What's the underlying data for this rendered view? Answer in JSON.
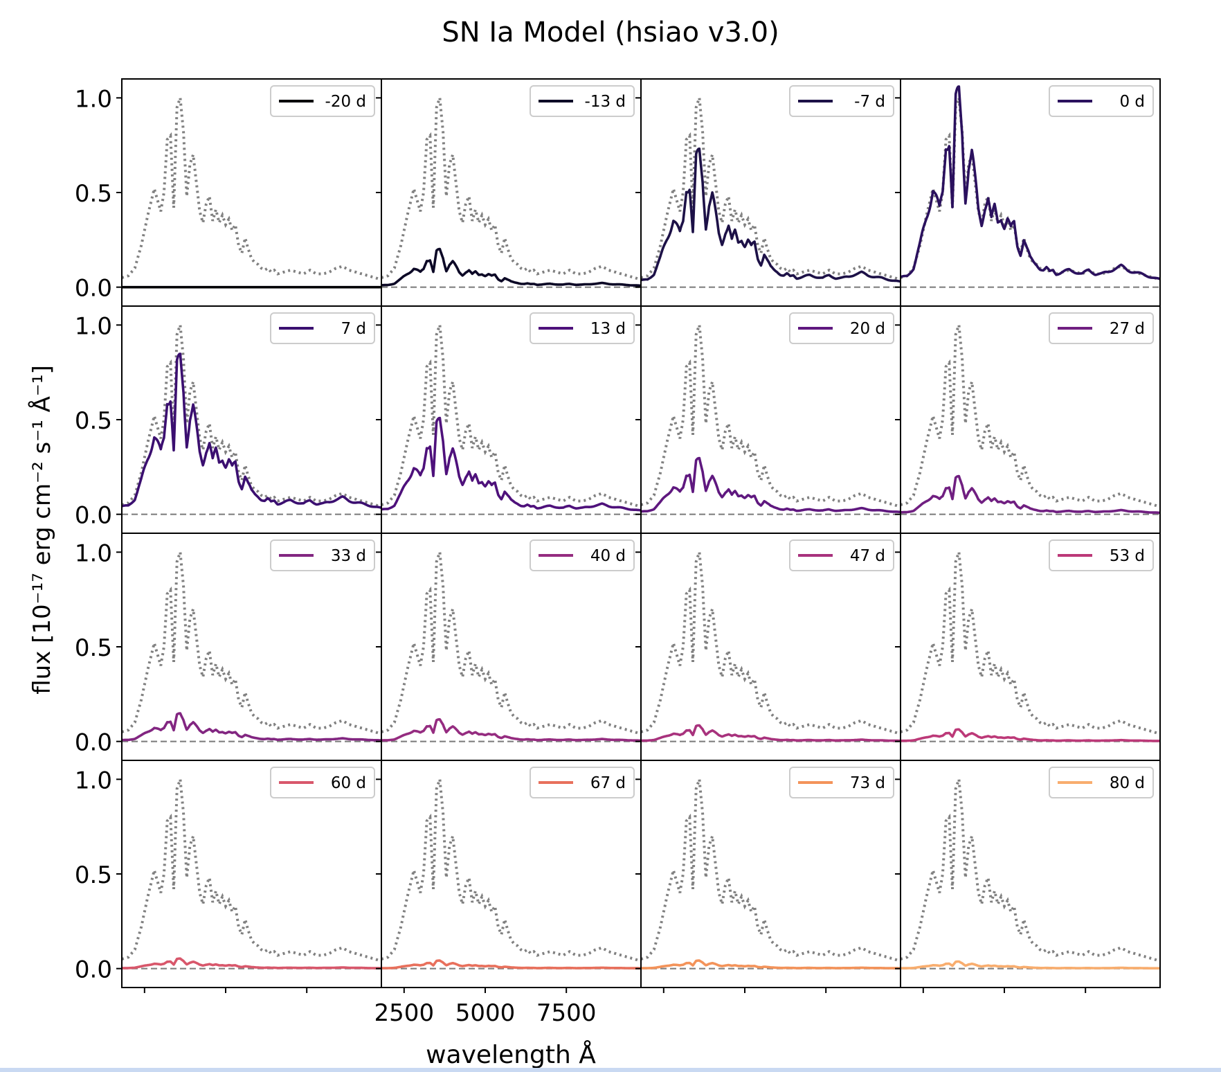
{
  "chart_data": {
    "type": "line",
    "title": "SN Ia Model (hsiao v3.0)",
    "xlabel": "wavelength Å",
    "ylabel": "flux [10⁻¹⁷ erg cm⁻² s⁻¹ Å⁻¹]",
    "grid": false,
    "layout": {
      "rows": 4,
      "cols": 4
    },
    "xlim": [
      1800,
      9800
    ],
    "ylim": [
      -0.1,
      1.1
    ],
    "xticks": [
      2500,
      5000,
      7500
    ],
    "xtick_labels": [
      "2500",
      "5000",
      "7500"
    ],
    "yticks": [
      0.0,
      0.5,
      1.0
    ],
    "ytick_labels": [
      "0.0",
      "0.5",
      "1.0"
    ],
    "baseline": 0.0,
    "legend_location": "upper right",
    "peak_spectrum": {
      "style": "dotted",
      "color": "#808080",
      "x": [
        1800,
        2000,
        2200,
        2400,
        2600,
        2800,
        3000,
        3100,
        3200,
        3300,
        3400,
        3500,
        3600,
        3700,
        3800,
        3900,
        4000,
        4100,
        4200,
        4300,
        4400,
        4500,
        4600,
        4700,
        4800,
        4900,
        5000,
        5100,
        5200,
        5300,
        5400,
        5500,
        5600,
        5700,
        5800,
        5900,
        6000,
        6100,
        6200,
        6300,
        6400,
        6500,
        6600,
        6800,
        7000,
        7200,
        7400,
        7600,
        7800,
        8000,
        8200,
        8400,
        8600,
        8800,
        9000,
        9200,
        9400,
        9600,
        9800
      ],
      "y": [
        0.05,
        0.06,
        0.1,
        0.22,
        0.38,
        0.52,
        0.4,
        0.5,
        0.78,
        0.8,
        0.42,
        0.95,
        1.0,
        0.82,
        0.48,
        0.65,
        0.7,
        0.55,
        0.4,
        0.34,
        0.44,
        0.48,
        0.35,
        0.41,
        0.34,
        0.38,
        0.33,
        0.36,
        0.3,
        0.33,
        0.22,
        0.18,
        0.26,
        0.2,
        0.15,
        0.13,
        0.12,
        0.1,
        0.09,
        0.1,
        0.08,
        0.09,
        0.07,
        0.08,
        0.09,
        0.08,
        0.07,
        0.09,
        0.07,
        0.07,
        0.08,
        0.1,
        0.11,
        0.09,
        0.08,
        0.07,
        0.06,
        0.05,
        0.04
      ]
    },
    "series": [
      {
        "name": "-20 d",
        "color": "#000004",
        "scale": 0.0
      },
      {
        "name": "-13 d",
        "color": "#0c0826",
        "scale": 0.19
      },
      {
        "name": "-7 d",
        "color": "#1d1147",
        "scale": 0.69
      },
      {
        "name": "0 d",
        "color": "#2b115e",
        "scale": 1.0
      },
      {
        "name": "7 d",
        "color": "#3b0f70",
        "scale": 0.8
      },
      {
        "name": "13 d",
        "color": "#4e117b",
        "scale": 0.48
      },
      {
        "name": "20 d",
        "color": "#5f187f",
        "scale": 0.28
      },
      {
        "name": "27 d",
        "color": "#701f81",
        "scale": 0.19
      },
      {
        "name": "33 d",
        "color": "#822681",
        "scale": 0.14
      },
      {
        "name": "40 d",
        "color": "#952c80",
        "scale": 0.11
      },
      {
        "name": "47 d",
        "color": "#a8327d",
        "scale": 0.08
      },
      {
        "name": "53 d",
        "color": "#bc3978",
        "scale": 0.06
      },
      {
        "name": "60 d",
        "color": "#d8576b",
        "scale": 0.05
      },
      {
        "name": "67 d",
        "color": "#e8705c",
        "scale": 0.04
      },
      {
        "name": "73 d",
        "color": "#f3935a",
        "scale": 0.04
      },
      {
        "name": "80 d",
        "color": "#f8ad6e",
        "scale": 0.035
      }
    ]
  }
}
